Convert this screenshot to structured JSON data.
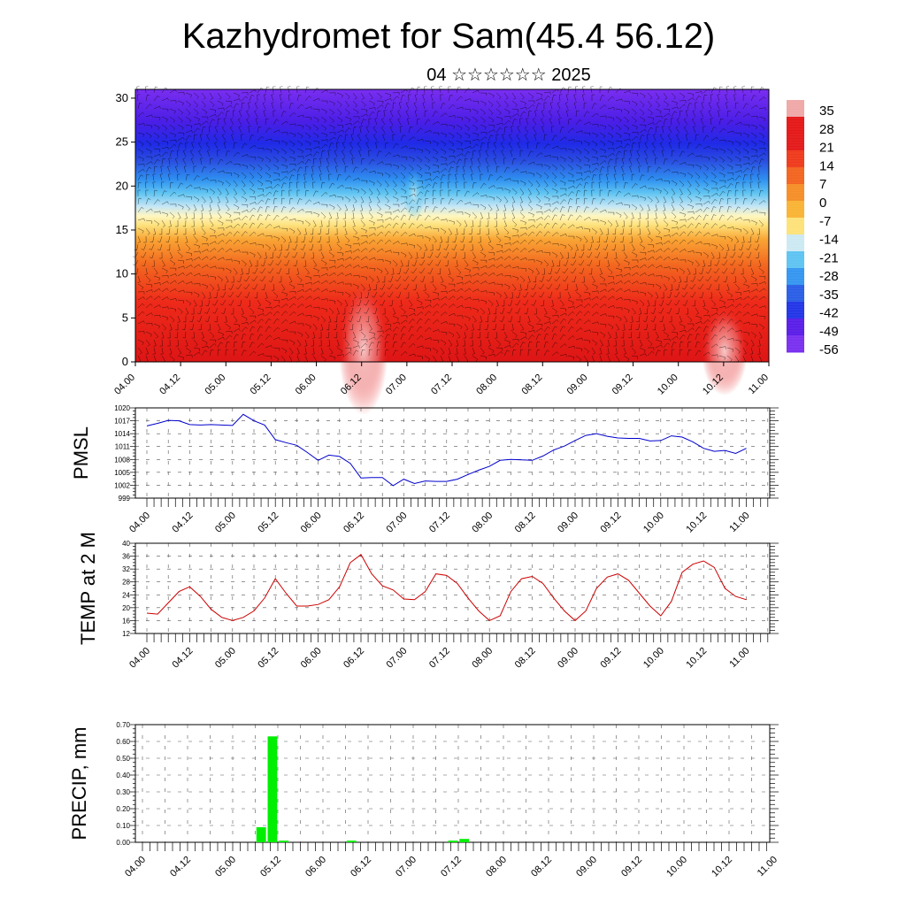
{
  "title": "Kazhydromet for Sam(45.4 56.12)",
  "subtitle": "04 ☆☆☆☆☆☆ 2025",
  "chart_data": [
    {
      "type": "heatmap",
      "name": "vertical temperature cross-section with wind barbs",
      "x_ticks": [
        "04.00",
        "04.12",
        "05.00",
        "05.12",
        "06.00",
        "06.12",
        "07.00",
        "07.12",
        "08.00",
        "08.12",
        "09.00",
        "09.12",
        "10.00",
        "10.12",
        "11.00"
      ],
      "y_ticks": [
        0,
        5,
        10,
        15,
        20,
        25,
        30
      ],
      "ylim": [
        0,
        31
      ],
      "colorbar_labels": [
        "35",
        "28",
        "21",
        "14",
        "7",
        "0",
        "-7",
        "-14",
        "-21",
        "-28",
        "-35",
        "-42",
        "-49",
        "-56"
      ],
      "colorbar_range": [
        -60,
        38
      ],
      "color_stops": [
        "#5a12e0",
        "#2a2af5",
        "#2a7df5",
        "#30b8f0",
        "#bfe3f0",
        "#fff7a8",
        "#fbd050",
        "#f89a30",
        "#f2601f",
        "#e82020",
        "#d81818",
        "#f0a0a0"
      ]
    },
    {
      "type": "line",
      "ylabel": "PMSL",
      "ylim": [
        999,
        1020
      ],
      "y_ticks": [
        999,
        1002,
        1005,
        1008,
        1011,
        1014,
        1017,
        1020
      ],
      "x_ticks": [
        "04.00",
        "04.12",
        "05.00",
        "05.12",
        "06.00",
        "06.12",
        "07.00",
        "07.12",
        "08.00",
        "08.12",
        "09.00",
        "09.12",
        "10.00",
        "10.12",
        "11.00"
      ],
      "color": "#0000cc",
      "values": [
        1015.8,
        1016.4,
        1017.1,
        1017.0,
        1016.1,
        1016.0,
        1016.1,
        1016.0,
        1015.9,
        1018.5,
        1017.0,
        1016.0,
        1012.6,
        1011.9,
        1011.3,
        1009.6,
        1007.8,
        1009.0,
        1008.7,
        1007.1,
        1003.7,
        1003.8,
        1003.8,
        1001.9,
        1003.4,
        1002.4,
        1003.0,
        1002.9,
        1002.9,
        1003.4,
        1004.5,
        1005.5,
        1006.4,
        1007.8,
        1008.0,
        1007.9,
        1007.8,
        1008.8,
        1010.2,
        1011.1,
        1012.4,
        1013.6,
        1014.0,
        1013.4,
        1013.0,
        1012.9,
        1012.9,
        1012.3,
        1012.4,
        1013.5,
        1013.2,
        1012.1,
        1010.6,
        1009.9,
        1010.1,
        1009.4,
        1010.6
      ]
    },
    {
      "type": "line",
      "ylabel": "TEMP at 2 M",
      "ylim": [
        12,
        40
      ],
      "y_ticks": [
        12,
        16,
        20,
        24,
        28,
        32,
        36,
        40
      ],
      "x_ticks": [
        "04.00",
        "04.12",
        "05.00",
        "05.12",
        "06.00",
        "06.12",
        "07.00",
        "07.12",
        "08.00",
        "08.12",
        "09.00",
        "09.12",
        "10.00",
        "10.12",
        "11.00"
      ],
      "color": "#cc0000",
      "values": [
        18.3,
        18.0,
        21.5,
        25.0,
        26.5,
        23.5,
        19.5,
        17.0,
        16.0,
        17.0,
        19.0,
        23.0,
        29.0,
        24.5,
        20.5,
        20.5,
        21.0,
        22.5,
        26.5,
        34.0,
        36.5,
        30.5,
        26.8,
        25.5,
        22.7,
        22.5,
        25.0,
        30.5,
        30.0,
        27.5,
        23.0,
        19.0,
        16.0,
        17.5,
        25.0,
        29.0,
        29.7,
        27.5,
        23.0,
        19.0,
        16.0,
        19.0,
        26.0,
        29.5,
        30.5,
        28.5,
        24.5,
        20.5,
        17.5,
        22.0,
        31.0,
        33.5,
        34.5,
        32.5,
        26.0,
        23.5,
        22.5
      ]
    },
    {
      "type": "bar",
      "ylabel": "PRECIP, mm",
      "ylim": [
        0,
        0.7
      ],
      "y_ticks": [
        "0.00",
        "0.10",
        "0.20",
        "0.30",
        "0.40",
        "0.50",
        "0.60",
        "0.70"
      ],
      "x_ticks": [
        "04.00",
        "04.12",
        "05.00",
        "05.12",
        "06.00",
        "06.12",
        "07.00",
        "07.12",
        "08.00",
        "08.12",
        "09.00",
        "09.12",
        "10.00",
        "10.12",
        "11.00"
      ],
      "color": "#00ee00",
      "values": [
        0,
        0,
        0,
        0,
        0,
        0,
        0,
        0,
        0,
        0,
        0.09,
        0.63,
        0.01,
        0,
        0,
        0,
        0,
        0,
        0.01,
        0,
        0,
        0,
        0,
        0,
        0,
        0,
        0,
        0.01,
        0.02,
        0,
        0,
        0,
        0,
        0,
        0,
        0,
        0,
        0,
        0,
        0,
        0,
        0,
        0,
        0,
        0,
        0,
        0,
        0,
        0,
        0,
        0,
        0,
        0,
        0,
        0,
        0
      ]
    }
  ]
}
